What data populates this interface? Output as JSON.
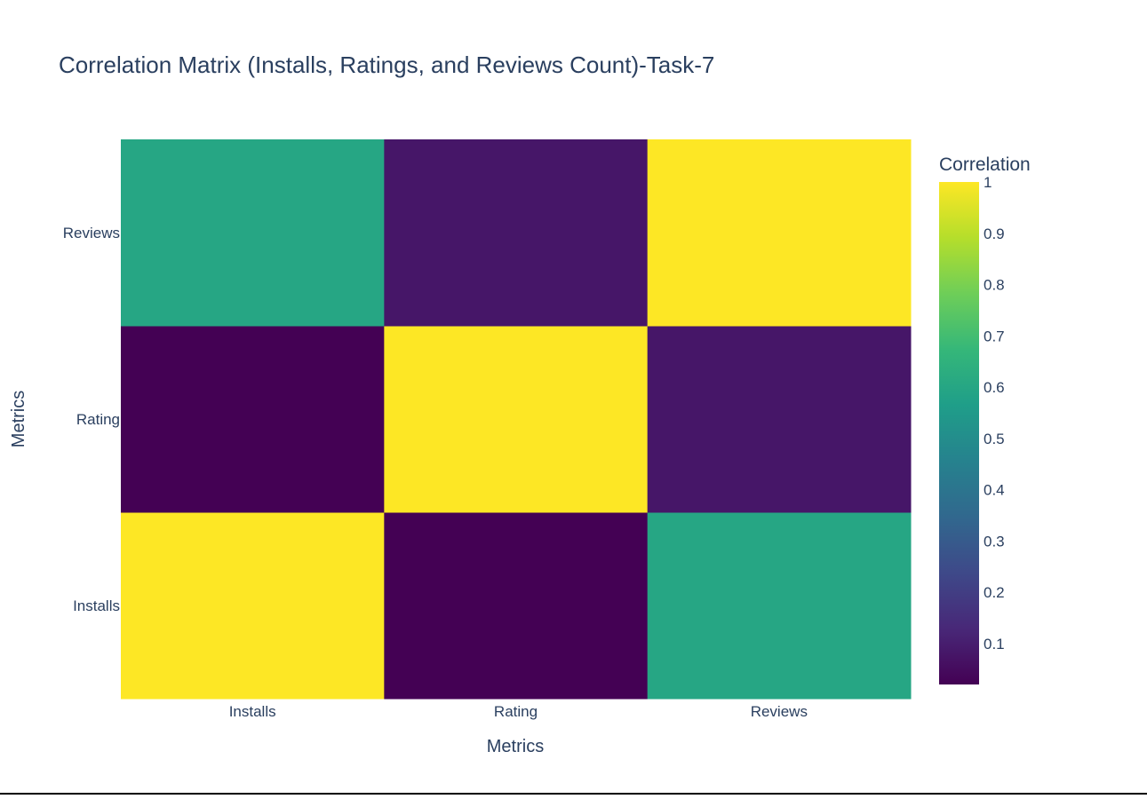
{
  "chart_data": {
    "type": "heatmap",
    "title": "Correlation Matrix (Installs, Ratings, and Reviews Count)-Task-7",
    "xlabel": "Metrics",
    "ylabel": "Metrics",
    "x": [
      "Installs",
      "Rating",
      "Reviews"
    ],
    "y": [
      "Installs",
      "Rating",
      "Reviews"
    ],
    "z": [
      [
        1.0,
        0.02,
        0.6
      ],
      [
        0.02,
        1.0,
        0.08
      ],
      [
        0.6,
        0.08,
        1.0
      ]
    ],
    "colorscale": "Viridis",
    "colorbar": {
      "title": "Correlation",
      "range": [
        0.02,
        1.0
      ],
      "ticks": [
        0.1,
        0.2,
        0.3,
        0.4,
        0.5,
        0.6,
        0.7,
        0.8,
        0.9,
        1
      ],
      "tick_labels": [
        "0.1",
        "0.2",
        "0.3",
        "0.4",
        "0.5",
        "0.6",
        "0.7",
        "0.8",
        "0.9",
        "1"
      ]
    }
  }
}
